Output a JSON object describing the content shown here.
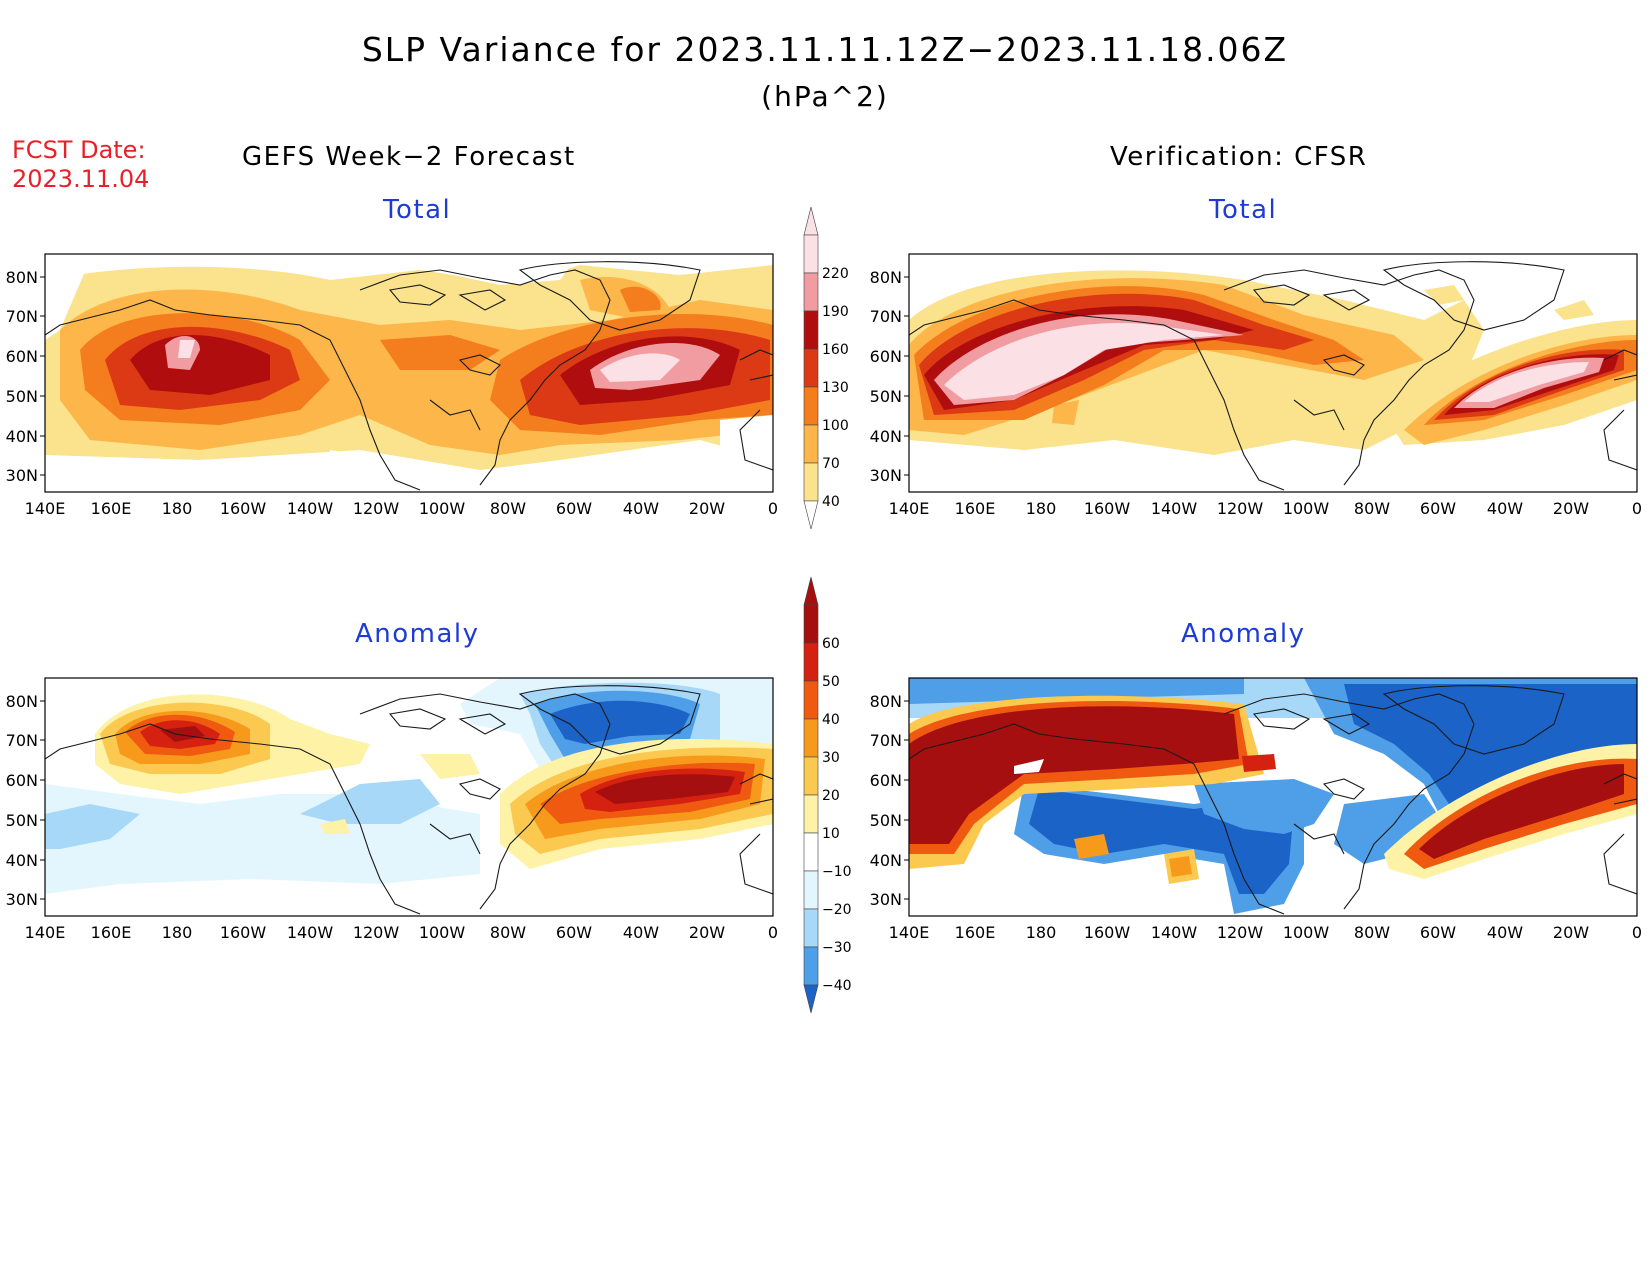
{
  "figure": {
    "title": "SLP Variance for 2023.11.11.12Z−2023.11.18.06Z",
    "units": "(hPa^2)",
    "fcst_label": "FCST Date:",
    "fcst_date": "2023.11.04",
    "left_heading": "GEFS Week−2 Forecast",
    "right_heading": "Verification: CFSR",
    "total_label": "Total",
    "anomaly_label": "Anomaly"
  },
  "axes": {
    "lat_labels": [
      "80N",
      "70N",
      "60N",
      "50N",
      "40N",
      "30N"
    ],
    "lon_labels": [
      "140E",
      "160E",
      "180",
      "160W",
      "140W",
      "120W",
      "100W",
      "80W",
      "60W",
      "40W",
      "20W",
      "0"
    ]
  },
  "colorbars": {
    "total": {
      "levels": [
        "40",
        "70",
        "100",
        "130",
        "160",
        "190",
        "220"
      ],
      "colors": [
        "#fae38c",
        "#fdb649",
        "#f47d1e",
        "#dc3a14",
        "#b00e0e",
        "#f09ca0",
        "#fbe0e6"
      ],
      "min_color": "#ffffff"
    },
    "anomaly": {
      "levels": [
        "60",
        "50",
        "40",
        "30",
        "20",
        "10",
        "−10",
        "−20",
        "−30",
        "−40"
      ],
      "colors_top_down": [
        "#a50f0f",
        "#d42110",
        "#f05a10",
        "#f79a1c",
        "#fbc850",
        "#fdf2a5",
        "#ffffff",
        "#e3f6fe",
        "#a8d8f8",
        "#4f9ee8",
        "#1c63c8"
      ]
    }
  },
  "chart_data": [
    {
      "type": "heatmap",
      "panel": "GEFS Week−2 Forecast — Total",
      "x": [
        "140E",
        "0"
      ],
      "y": [
        "30N",
        "80N"
      ],
      "colorbar": "total",
      "features": [
        {
          "region": "Bering Sea / Aleutians",
          "max_level": "190"
        },
        {
          "region": "North Atlantic (south of Greenland)",
          "max_level": "220"
        }
      ]
    },
    {
      "type": "heatmap",
      "panel": "Verification: CFSR — Total",
      "colorbar": "total",
      "features": [
        {
          "region": "North Pacific / Alaska band",
          "max_level": "220"
        },
        {
          "region": "North Atlantic",
          "max_level": "220"
        }
      ]
    },
    {
      "type": "heatmap",
      "panel": "GEFS Week−2 Forecast — Anomaly",
      "colorbar": "anomaly",
      "features": [
        {
          "region": "Bering Sea",
          "max_level": "50"
        },
        {
          "region": "North Atlantic",
          "max_level": "60"
        },
        {
          "region": "Greenland / Arctic Canada",
          "min_level": "−40"
        }
      ]
    },
    {
      "type": "heatmap",
      "panel": "Verification: CFSR — Anomaly",
      "colorbar": "anomaly",
      "features": [
        {
          "region": "North Pacific / Alaska",
          "max_level": "60"
        },
        {
          "region": "North Atlantic",
          "max_level": "60"
        },
        {
          "region": "Western North America / Greenland",
          "min_level": "−40"
        }
      ]
    }
  ]
}
